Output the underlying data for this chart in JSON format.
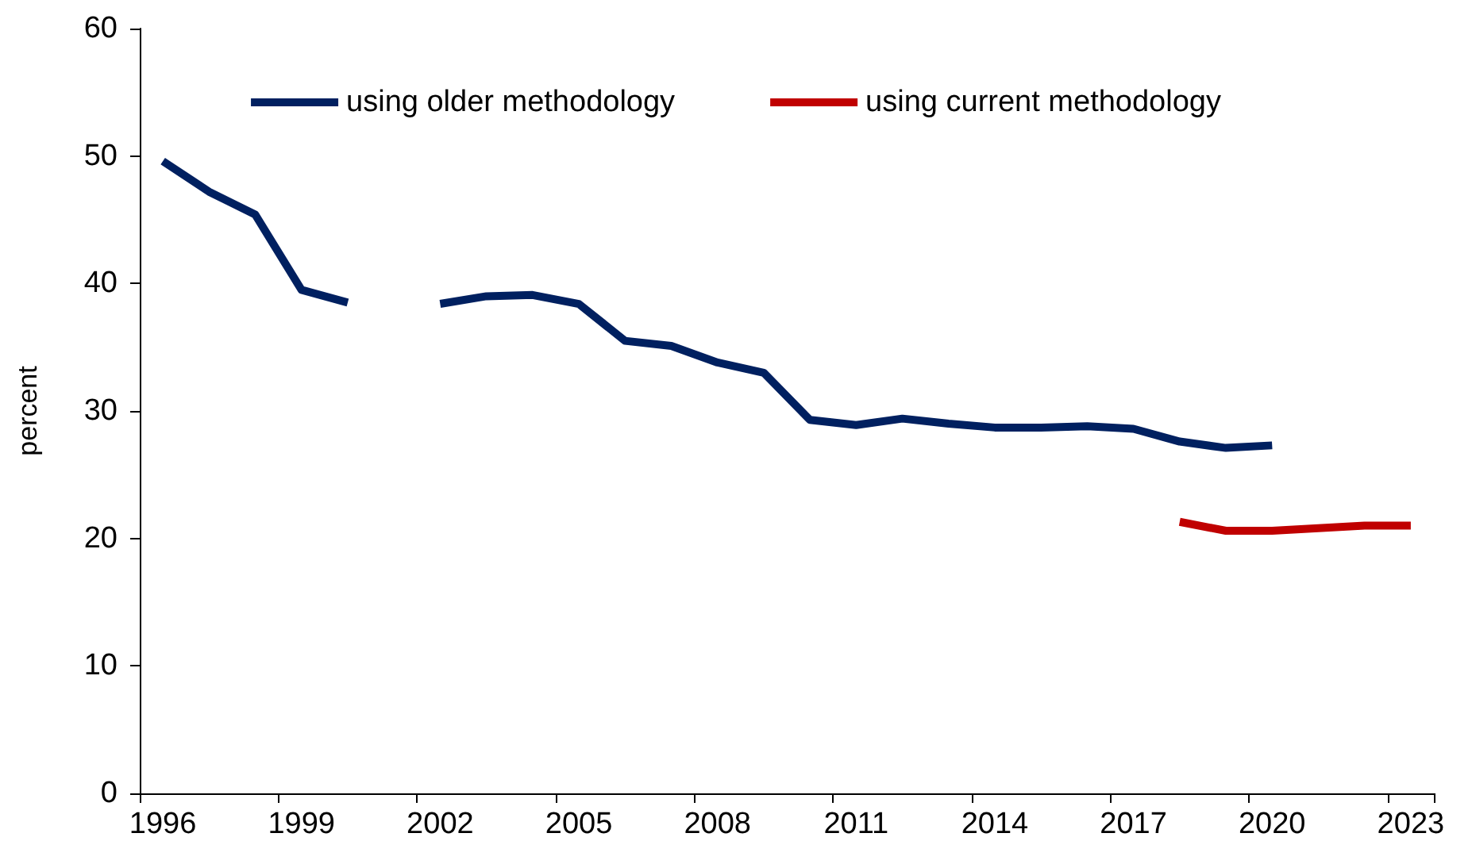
{
  "chart_data": {
    "type": "line",
    "ylabel": "percent",
    "categories": [
      "1996",
      null,
      null,
      "1999",
      null,
      null,
      "2002",
      null,
      null,
      "2005",
      null,
      null,
      "2008",
      null,
      null,
      "2011",
      null,
      null,
      "2014",
      null,
      null,
      "2017",
      null,
      null,
      "2020",
      null,
      null,
      "2023"
    ],
    "series": [
      {
        "name": "using older methodology",
        "color": "#002060",
        "values": [
          49.6,
          47.2,
          45.4,
          39.5,
          38.5,
          null,
          38.4,
          39.0,
          39.1,
          38.4,
          35.5,
          35.1,
          33.8,
          33.0,
          29.3,
          28.9,
          29.4,
          29.0,
          28.7,
          28.7,
          28.8,
          28.6,
          27.6,
          27.1,
          27.3,
          null,
          null,
          null
        ]
      },
      {
        "name": "using current methodology",
        "color": "#c00000",
        "values": [
          null,
          null,
          null,
          null,
          null,
          null,
          null,
          null,
          null,
          null,
          null,
          null,
          null,
          null,
          null,
          null,
          null,
          null,
          null,
          null,
          null,
          null,
          21.3,
          20.6,
          20.6,
          20.8,
          21.0,
          21.0
        ]
      }
    ],
    "ylim": [
      0,
      60
    ],
    "yticks": [
      0,
      10,
      20,
      30,
      40,
      50,
      60
    ],
    "grid": false,
    "legend": "top",
    "marker": "none",
    "line_style": "solid"
  }
}
